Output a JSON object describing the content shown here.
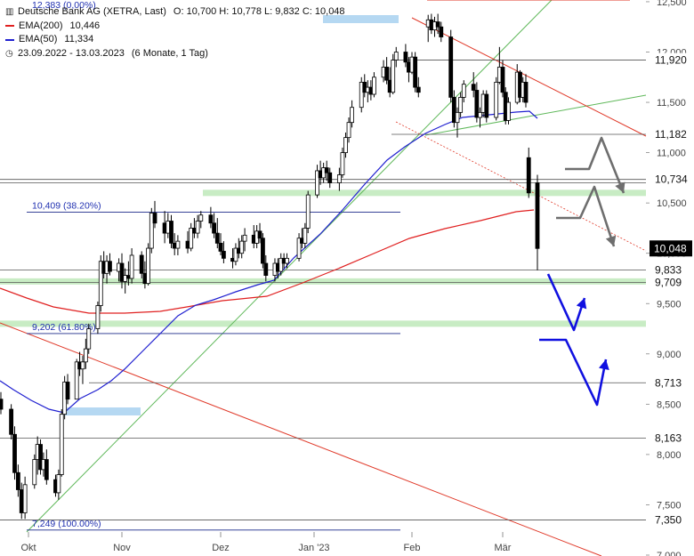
{
  "legend": {
    "title": "Deutsche Bank AG (XETRA, Last)",
    "ohlc": "O: 10,700  H: 10,778  L: 9,832  C: 10,048",
    "ema200_label": "EMA(200)",
    "ema200_value": "10,446",
    "ema50_label": "EMA(50)",
    "ema50_value": "11,334",
    "period": "23.09.2022 - 13.03.2023",
    "interval": "(6 Monate, 1 Tag)",
    "clipped_top_text": "12,383 (0,00%)"
  },
  "colors": {
    "ema200": "#e02020",
    "ema50": "#2020d0",
    "support_zone": "#c8ecc4",
    "fib_line": "#1b2a8a",
    "up_trend": "#5fb85a",
    "down_trend": "#e03a2a",
    "scenario_bear": "#1010e0",
    "scenario_bull": "#6e6e6e",
    "price_tag_bg": "#000000"
  },
  "chart_data": {
    "type": "candlestick",
    "title": "Deutsche Bank AG (XETRA, Last)",
    "xlabel": "",
    "ylabel": "",
    "ylim": [
      7.0,
      12.5
    ],
    "x_ticks": [
      "Okt",
      "Nov",
      "Dez",
      "Jan '23",
      "Feb",
      "Mär"
    ],
    "y_ticks": [
      "7,000",
      "7,500",
      "8,000",
      "8,500",
      "9,000",
      "9,500",
      "10,000",
      "10,500",
      "11,000",
      "11,500",
      "12,000",
      "12,500"
    ],
    "last_price": {
      "value": 10.048,
      "label": "10,048"
    },
    "horizontal_levels": [
      {
        "value": 11.92,
        "label": "11,920"
      },
      {
        "value": 11.182,
        "label": "11,182"
      },
      {
        "value": 10.734,
        "label": "10,734"
      },
      {
        "value": 9.833,
        "label": "9,833"
      },
      {
        "value": 9.709,
        "label": "9,709"
      },
      {
        "value": 8.713,
        "label": "8,713"
      },
      {
        "value": 8.163,
        "label": "8,163"
      },
      {
        "value": 7.35,
        "label": "7,350"
      }
    ],
    "fibonacci": [
      {
        "value": 10.409,
        "label": "10,409 (38.20%)"
      },
      {
        "value": 9.202,
        "label": "9,202 (61.80%)"
      },
      {
        "value": 7.249,
        "label": "7,249 (100.00%)"
      }
    ],
    "support_zones": [
      10.6,
      9.72,
      9.3
    ],
    "ohlc_series": [
      {
        "date": "2022-09-23",
        "o": 8.55,
        "h": 8.62,
        "l": 8.4,
        "c": 8.45
      },
      {
        "date": "2022-09-26",
        "o": 8.45,
        "h": 8.5,
        "l": 8.15,
        "c": 8.2
      },
      {
        "date": "2022-09-27",
        "o": 8.2,
        "h": 8.28,
        "l": 7.75,
        "c": 7.82
      },
      {
        "date": "2022-09-28",
        "o": 7.82,
        "h": 7.9,
        "l": 7.58,
        "c": 7.65
      },
      {
        "date": "2022-09-29",
        "o": 7.65,
        "h": 7.72,
        "l": 7.36,
        "c": 7.42
      },
      {
        "date": "2022-09-30",
        "o": 7.42,
        "h": 7.78,
        "l": 7.36,
        "c": 7.7
      },
      {
        "date": "2022-10-03",
        "o": 7.7,
        "h": 8.0,
        "l": 7.66,
        "c": 7.95
      },
      {
        "date": "2022-10-04",
        "o": 7.95,
        "h": 8.18,
        "l": 7.8,
        "c": 8.1
      },
      {
        "date": "2022-10-05",
        "o": 8.1,
        "h": 8.15,
        "l": 7.8,
        "c": 7.85
      },
      {
        "date": "2022-10-06",
        "o": 7.85,
        "h": 8.02,
        "l": 7.78,
        "c": 7.95
      },
      {
        "date": "2022-10-07",
        "o": 7.95,
        "h": 8.05,
        "l": 7.7,
        "c": 7.75
      },
      {
        "date": "2022-10-10",
        "o": 7.75,
        "h": 7.8,
        "l": 7.58,
        "c": 7.62
      },
      {
        "date": "2022-10-11",
        "o": 7.62,
        "h": 7.85,
        "l": 7.55,
        "c": 7.8
      },
      {
        "date": "2022-10-12",
        "o": 7.8,
        "h": 8.45,
        "l": 7.78,
        "c": 8.4
      },
      {
        "date": "2022-10-13",
        "o": 8.4,
        "h": 8.78,
        "l": 8.35,
        "c": 8.72
      },
      {
        "date": "2022-10-14",
        "o": 8.72,
        "h": 8.8,
        "l": 8.5,
        "c": 8.55
      },
      {
        "date": "2022-10-17",
        "o": 8.55,
        "h": 8.95,
        "l": 8.55,
        "c": 8.92
      },
      {
        "date": "2022-10-18",
        "o": 8.92,
        "h": 9.02,
        "l": 8.78,
        "c": 8.85
      },
      {
        "date": "2022-10-19",
        "o": 8.85,
        "h": 8.98,
        "l": 8.7,
        "c": 8.92
      },
      {
        "date": "2022-10-20",
        "o": 8.92,
        "h": 9.15,
        "l": 8.85,
        "c": 9.05
      },
      {
        "date": "2022-10-21",
        "o": 9.05,
        "h": 9.3,
        "l": 9.0,
        "c": 9.25
      },
      {
        "date": "2022-10-24",
        "o": 9.25,
        "h": 9.52,
        "l": 9.2,
        "c": 9.48
      },
      {
        "date": "2022-10-25",
        "o": 9.48,
        "h": 9.98,
        "l": 9.42,
        "c": 9.92
      },
      {
        "date": "2022-10-26",
        "o": 9.92,
        "h": 10.02,
        "l": 9.75,
        "c": 9.8
      },
      {
        "date": "2022-10-27",
        "o": 9.8,
        "h": 9.98,
        "l": 9.7,
        "c": 9.92
      },
      {
        "date": "2022-10-28",
        "o": 9.92,
        "h": 10.0,
        "l": 9.78,
        "c": 9.82
      },
      {
        "date": "2022-10-31",
        "o": 9.82,
        "h": 9.95,
        "l": 9.72,
        "c": 9.9
      },
      {
        "date": "2022-11-01",
        "o": 9.9,
        "h": 10.0,
        "l": 9.65,
        "c": 9.72
      },
      {
        "date": "2022-11-02",
        "o": 9.72,
        "h": 9.85,
        "l": 9.6,
        "c": 9.78
      },
      {
        "date": "2022-11-03",
        "o": 9.78,
        "h": 9.92,
        "l": 9.68,
        "c": 9.75
      },
      {
        "date": "2022-11-04",
        "o": 9.75,
        "h": 10.05,
        "l": 9.7,
        "c": 9.98
      },
      {
        "date": "2022-11-07",
        "o": 9.98,
        "h": 10.02,
        "l": 9.75,
        "c": 9.8
      },
      {
        "date": "2022-11-08",
        "o": 9.8,
        "h": 9.92,
        "l": 9.65,
        "c": 9.7
      },
      {
        "date": "2022-11-09",
        "o": 9.7,
        "h": 10.1,
        "l": 9.68,
        "c": 10.05
      },
      {
        "date": "2022-11-10",
        "o": 10.05,
        "h": 10.45,
        "l": 10.0,
        "c": 10.4
      },
      {
        "date": "2022-11-11",
        "o": 10.4,
        "h": 10.52,
        "l": 10.25,
        "c": 10.3
      },
      {
        "date": "2022-11-14",
        "o": 10.3,
        "h": 10.42,
        "l": 10.1,
        "c": 10.2
      },
      {
        "date": "2022-11-15",
        "o": 10.2,
        "h": 10.4,
        "l": 10.15,
        "c": 10.32
      },
      {
        "date": "2022-11-16",
        "o": 10.32,
        "h": 10.38,
        "l": 10.05,
        "c": 10.1
      },
      {
        "date": "2022-11-17",
        "o": 10.1,
        "h": 10.2,
        "l": 9.98,
        "c": 10.05
      },
      {
        "date": "2022-11-18",
        "o": 10.05,
        "h": 10.18,
        "l": 9.98,
        "c": 10.12
      },
      {
        "date": "2022-11-21",
        "o": 10.12,
        "h": 10.22,
        "l": 10.0,
        "c": 10.05
      },
      {
        "date": "2022-11-22",
        "o": 10.05,
        "h": 10.3,
        "l": 10.02,
        "c": 10.25
      },
      {
        "date": "2022-11-23",
        "o": 10.25,
        "h": 10.35,
        "l": 10.15,
        "c": 10.2
      },
      {
        "date": "2022-11-24",
        "o": 10.2,
        "h": 10.38,
        "l": 10.15,
        "c": 10.32
      },
      {
        "date": "2022-11-25",
        "o": 10.32,
        "h": 10.42,
        "l": 10.25,
        "c": 10.38
      },
      {
        "date": "2022-11-28",
        "o": 10.38,
        "h": 10.46,
        "l": 10.25,
        "c": 10.3
      },
      {
        "date": "2022-11-29",
        "o": 10.3,
        "h": 10.4,
        "l": 10.15,
        "c": 10.2
      },
      {
        "date": "2022-11-30",
        "o": 10.2,
        "h": 10.35,
        "l": 10.05,
        "c": 10.1
      },
      {
        "date": "2022-12-01",
        "o": 10.1,
        "h": 10.2,
        "l": 9.98,
        "c": 10.02
      },
      {
        "date": "2022-12-02",
        "o": 10.02,
        "h": 10.12,
        "l": 9.9,
        "c": 9.95
      },
      {
        "date": "2022-12-05",
        "o": 9.95,
        "h": 10.05,
        "l": 9.85,
        "c": 9.92
      },
      {
        "date": "2022-12-06",
        "o": 9.92,
        "h": 10.1,
        "l": 9.88,
        "c": 10.05
      },
      {
        "date": "2022-12-07",
        "o": 10.05,
        "h": 10.15,
        "l": 9.95,
        "c": 10.0
      },
      {
        "date": "2022-12-08",
        "o": 10.0,
        "h": 10.18,
        "l": 9.95,
        "c": 10.12
      },
      {
        "date": "2022-12-09",
        "o": 10.12,
        "h": 10.25,
        "l": 10.02,
        "c": 10.18
      },
      {
        "date": "2022-12-12",
        "o": 10.18,
        "h": 10.28,
        "l": 10.05,
        "c": 10.1
      },
      {
        "date": "2022-12-13",
        "o": 10.1,
        "h": 10.28,
        "l": 10.05,
        "c": 10.22
      },
      {
        "date": "2022-12-14",
        "o": 10.22,
        "h": 10.3,
        "l": 10.1,
        "c": 10.15
      },
      {
        "date": "2022-12-15",
        "o": 10.15,
        "h": 10.2,
        "l": 9.85,
        "c": 9.9
      },
      {
        "date": "2022-12-16",
        "o": 9.9,
        "h": 9.98,
        "l": 9.72,
        "c": 9.78
      },
      {
        "date": "2022-12-19",
        "o": 9.78,
        "h": 9.95,
        "l": 9.72,
        "c": 9.9
      },
      {
        "date": "2022-12-20",
        "o": 9.9,
        "h": 9.95,
        "l": 9.75,
        "c": 9.82
      },
      {
        "date": "2022-12-21",
        "o": 9.82,
        "h": 10.0,
        "l": 9.78,
        "c": 9.95
      },
      {
        "date": "2022-12-22",
        "o": 9.95,
        "h": 10.0,
        "l": 9.85,
        "c": 9.9
      },
      {
        "date": "2022-12-23",
        "o": 9.9,
        "h": 10.0,
        "l": 9.85,
        "c": 9.95
      },
      {
        "date": "2022-12-27",
        "o": 9.95,
        "h": 10.2,
        "l": 9.92,
        "c": 10.15
      },
      {
        "date": "2022-12-28",
        "o": 10.15,
        "h": 10.25,
        "l": 10.05,
        "c": 10.1
      },
      {
        "date": "2022-12-29",
        "o": 10.1,
        "h": 10.3,
        "l": 10.05,
        "c": 10.25
      },
      {
        "date": "2022-12-30",
        "o": 10.25,
        "h": 10.62,
        "l": 10.2,
        "c": 10.58
      },
      {
        "date": "2023-01-02",
        "o": 10.58,
        "h": 10.88,
        "l": 10.55,
        "c": 10.82
      },
      {
        "date": "2023-01-03",
        "o": 10.82,
        "h": 10.92,
        "l": 10.68,
        "c": 10.75
      },
      {
        "date": "2023-01-04",
        "o": 10.75,
        "h": 10.9,
        "l": 10.7,
        "c": 10.85
      },
      {
        "date": "2023-01-05",
        "o": 10.85,
        "h": 10.92,
        "l": 10.72,
        "c": 10.8
      },
      {
        "date": "2023-01-06",
        "o": 10.8,
        "h": 10.85,
        "l": 10.65,
        "c": 10.7
      },
      {
        "date": "2023-01-09",
        "o": 10.7,
        "h": 10.85,
        "l": 10.62,
        "c": 10.78
      },
      {
        "date": "2023-01-10",
        "o": 10.78,
        "h": 11.05,
        "l": 10.75,
        "c": 11.0
      },
      {
        "date": "2023-01-11",
        "o": 11.0,
        "h": 11.2,
        "l": 10.95,
        "c": 11.15
      },
      {
        "date": "2023-01-12",
        "o": 11.15,
        "h": 11.35,
        "l": 11.1,
        "c": 11.3
      },
      {
        "date": "2023-01-13",
        "o": 11.3,
        "h": 11.52,
        "l": 11.25,
        "c": 11.45
      },
      {
        "date": "2023-01-16",
        "o": 11.45,
        "h": 11.75,
        "l": 11.4,
        "c": 11.7
      },
      {
        "date": "2023-01-17",
        "o": 11.7,
        "h": 11.78,
        "l": 11.55,
        "c": 11.6
      },
      {
        "date": "2023-01-18",
        "o": 11.6,
        "h": 11.72,
        "l": 11.5,
        "c": 11.65
      },
      {
        "date": "2023-01-19",
        "o": 11.65,
        "h": 11.72,
        "l": 11.52,
        "c": 11.58
      },
      {
        "date": "2023-01-20",
        "o": 11.58,
        "h": 11.8,
        "l": 11.55,
        "c": 11.75
      },
      {
        "date": "2023-01-23",
        "o": 11.75,
        "h": 11.92,
        "l": 11.7,
        "c": 11.85
      },
      {
        "date": "2023-01-24",
        "o": 11.85,
        "h": 11.95,
        "l": 11.68,
        "c": 11.72
      },
      {
        "date": "2023-01-25",
        "o": 11.72,
        "h": 11.85,
        "l": 11.55,
        "c": 11.6
      },
      {
        "date": "2023-01-26",
        "o": 11.6,
        "h": 11.98,
        "l": 11.58,
        "c": 11.92
      },
      {
        "date": "2023-01-27",
        "o": 11.92,
        "h": 12.05,
        "l": 11.85,
        "c": 12.0
      },
      {
        "date": "2023-01-30",
        "o": 12.0,
        "h": 12.08,
        "l": 11.85,
        "c": 11.9
      },
      {
        "date": "2023-01-31",
        "o": 11.9,
        "h": 11.95,
        "l": 11.7,
        "c": 11.8
      },
      {
        "date": "2023-02-01",
        "o": 11.8,
        "h": 12.0,
        "l": 11.78,
        "c": 11.95
      },
      {
        "date": "2023-02-02",
        "o": 11.95,
        "h": 12.0,
        "l": 11.6,
        "c": 11.65
      },
      {
        "date": "2023-02-03",
        "o": 11.65,
        "h": 11.75,
        "l": 11.55,
        "c": 11.6
      },
      {
        "date": "2023-02-06",
        "o": 12.25,
        "h": 12.37,
        "l": 12.1,
        "c": 12.32
      },
      {
        "date": "2023-02-07",
        "o": 12.32,
        "h": 12.38,
        "l": 12.18,
        "c": 12.22
      },
      {
        "date": "2023-02-08",
        "o": 12.22,
        "h": 12.35,
        "l": 12.15,
        "c": 12.3
      },
      {
        "date": "2023-02-09",
        "o": 12.3,
        "h": 12.38,
        "l": 12.18,
        "c": 12.25
      },
      {
        "date": "2023-02-10",
        "o": 12.25,
        "h": 12.3,
        "l": 12.1,
        "c": 12.15
      },
      {
        "date": "2023-02-13",
        "o": 12.15,
        "h": 12.22,
        "l": 11.5,
        "c": 11.55
      },
      {
        "date": "2023-02-14",
        "o": 11.55,
        "h": 11.62,
        "l": 11.25,
        "c": 11.3
      },
      {
        "date": "2023-02-15",
        "o": 11.3,
        "h": 11.45,
        "l": 11.15,
        "c": 11.4
      },
      {
        "date": "2023-02-16",
        "o": 11.4,
        "h": 11.6,
        "l": 11.35,
        "c": 11.55
      },
      {
        "date": "2023-02-17",
        "o": 11.55,
        "h": 11.72,
        "l": 11.5,
        "c": 11.68
      },
      {
        "date": "2023-02-20",
        "o": 11.68,
        "h": 11.8,
        "l": 11.55,
        "c": 11.62
      },
      {
        "date": "2023-02-21",
        "o": 11.62,
        "h": 11.7,
        "l": 11.3,
        "c": 11.35
      },
      {
        "date": "2023-02-22",
        "o": 11.35,
        "h": 11.45,
        "l": 11.25,
        "c": 11.4
      },
      {
        "date": "2023-02-23",
        "o": 11.4,
        "h": 11.62,
        "l": 11.35,
        "c": 11.58
      },
      {
        "date": "2023-02-24",
        "o": 11.58,
        "h": 11.62,
        "l": 11.3,
        "c": 11.35
      },
      {
        "date": "2023-02-27",
        "o": 11.35,
        "h": 11.75,
        "l": 11.32,
        "c": 11.7
      },
      {
        "date": "2023-02-28",
        "o": 11.7,
        "h": 12.05,
        "l": 11.68,
        "c": 11.85
      },
      {
        "date": "2023-03-01",
        "o": 11.85,
        "h": 11.92,
        "l": 11.55,
        "c": 11.6
      },
      {
        "date": "2023-03-02",
        "o": 11.6,
        "h": 11.65,
        "l": 11.28,
        "c": 11.32
      },
      {
        "date": "2023-03-03",
        "o": 11.32,
        "h": 11.55,
        "l": 11.28,
        "c": 11.5
      },
      {
        "date": "2023-03-06",
        "o": 11.5,
        "h": 11.88,
        "l": 11.48,
        "c": 11.8
      },
      {
        "date": "2023-03-07",
        "o": 11.8,
        "h": 11.82,
        "l": 11.5,
        "c": 11.55
      },
      {
        "date": "2023-03-08",
        "o": 11.55,
        "h": 11.75,
        "l": 11.5,
        "c": 11.7
      },
      {
        "date": "2023-03-09",
        "o": 11.7,
        "h": 11.78,
        "l": 11.45,
        "c": 11.5
      },
      {
        "date": "2023-03-10",
        "o": 10.95,
        "h": 11.05,
        "l": 10.55,
        "c": 10.6
      },
      {
        "date": "2023-03-13",
        "o": 10.7,
        "h": 10.78,
        "l": 9.832,
        "c": 10.048
      }
    ]
  }
}
